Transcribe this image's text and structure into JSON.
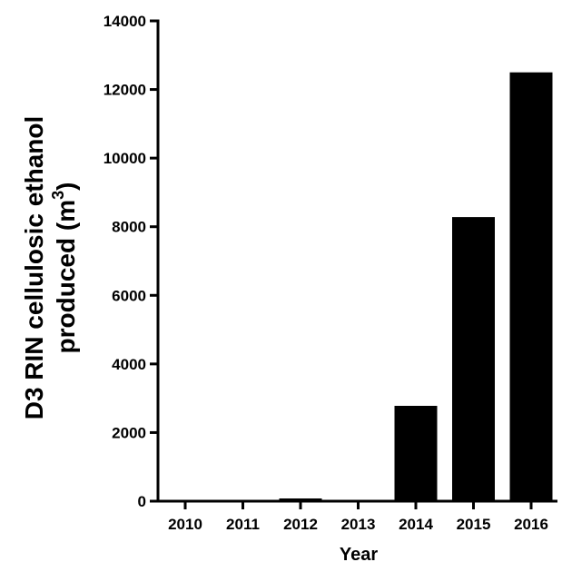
{
  "chart_data": {
    "type": "bar",
    "categories": [
      "2010",
      "2011",
      "2012",
      "2013",
      "2014",
      "2015",
      "2016"
    ],
    "values": [
      0,
      0,
      80,
      0,
      2780,
      8280,
      12500
    ],
    "xlabel": "Year",
    "ylabel_line1": "D3 RIN cellulosic ethanol",
    "ylabel_line2_prefix": "produced (m",
    "ylabel_superscript": "3",
    "ylabel_line2_suffix": ")",
    "ylim": [
      0,
      14000
    ],
    "yticks": [
      0,
      2000,
      4000,
      6000,
      8000,
      10000,
      12000,
      14000
    ],
    "ytick_labels": [
      "0",
      "2000",
      "4000",
      "6000",
      "8000",
      "10000",
      "12000",
      "14000"
    ],
    "bar_color": "#000000",
    "grid": false,
    "legend": "none"
  }
}
